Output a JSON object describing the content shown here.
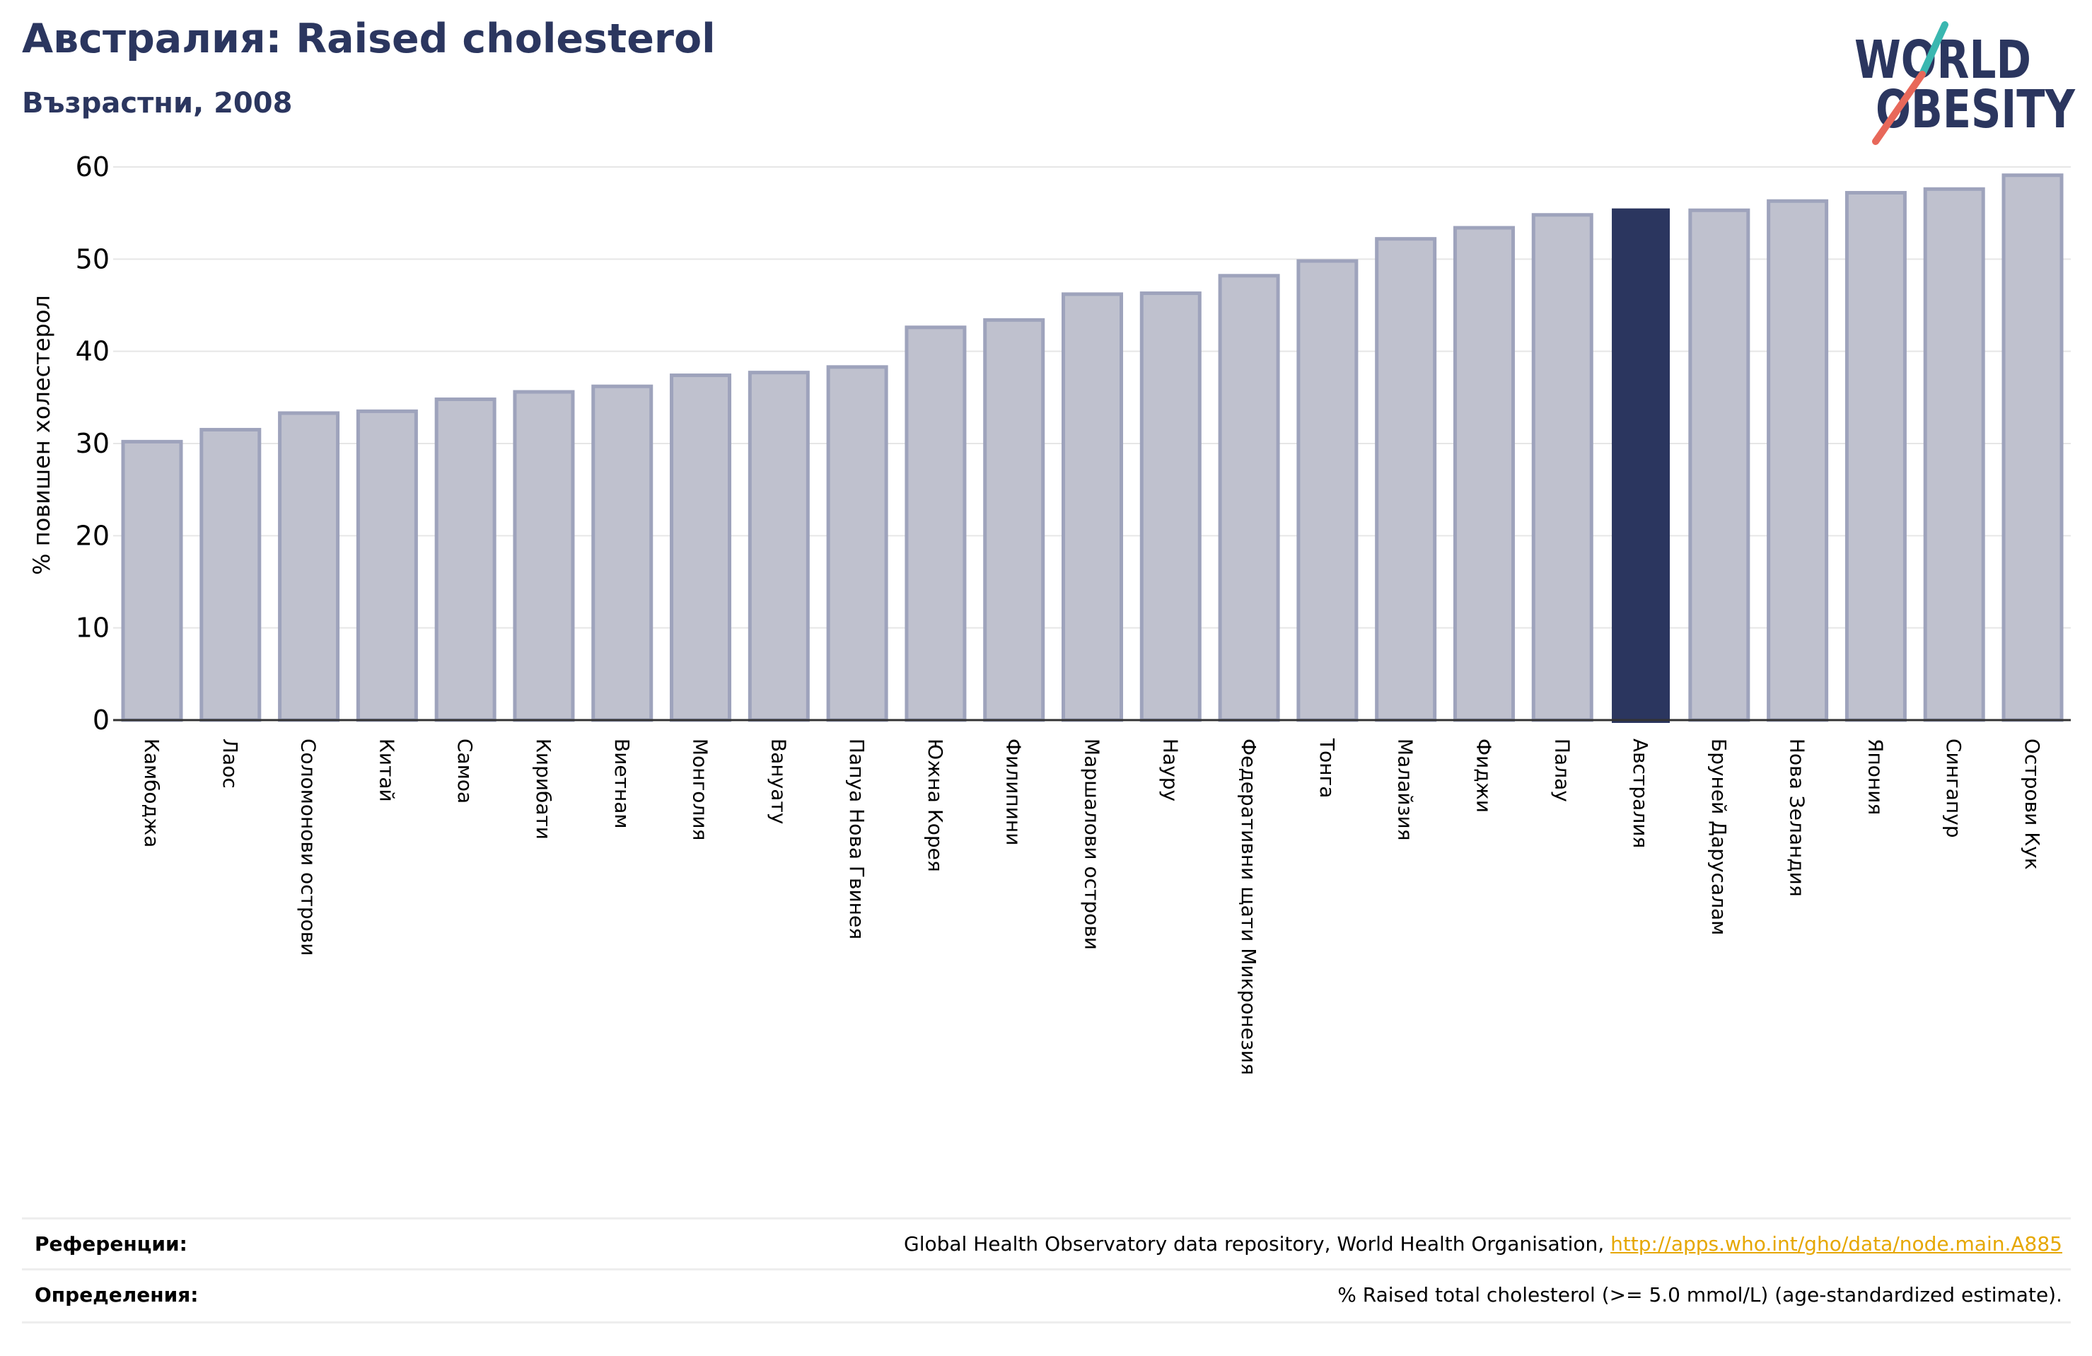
{
  "header": {
    "title": "Австралия: Raised cholesterol",
    "subtitle": "Възрастни, 2008"
  },
  "logo": {
    "line1": "WORLD",
    "line2": "OBESITY",
    "colors": {
      "text": "#2b365f",
      "slash_red": "#e8685a",
      "slash_teal": "#3ab7b0"
    }
  },
  "chart_data": {
    "type": "bar",
    "title": "",
    "xlabel": "",
    "ylabel": "% повишен холестерол",
    "ylim": [
      0,
      60
    ],
    "yticks": [
      0,
      10,
      20,
      30,
      40,
      50,
      60
    ],
    "grid": true,
    "highlight": "Австралия",
    "colors": {
      "bar": "#bfc1ce",
      "bar_edge": "#9ea3bc",
      "highlight": "#2b365f",
      "grid": "#e6e6e6"
    },
    "categories": [
      "Камбоджа",
      "Лаос",
      "Соломонови острови",
      "Китай",
      "Самоа",
      "Кирибати",
      "Виетнам",
      "Монголия",
      "Вануату",
      "Папуа Нова Гвинея",
      "Южна Корея",
      "Филипини",
      "Маршалови острови",
      "Науру",
      "Федеративни щати Микронезия",
      "Тонга",
      "Малайзия",
      "Фиджи",
      "Палау",
      "Австралия",
      "Бруней Дарусалам",
      "Нова Зеландия",
      "Япония",
      "Сингапур",
      "Острови Кук"
    ],
    "values": [
      30.2,
      31.5,
      33.3,
      33.5,
      34.8,
      35.6,
      36.2,
      37.4,
      37.7,
      38.3,
      42.6,
      43.4,
      46.2,
      46.3,
      48.2,
      49.8,
      52.2,
      53.4,
      54.8,
      55.5,
      55.3,
      56.3,
      57.2,
      57.6,
      59.1
    ]
  },
  "footer": {
    "references_label": "Референции:",
    "references_text": "Global Health Observatory data repository, World Health Organisation, ",
    "references_link": "http://apps.who.int/gho/data/node.main.A885",
    "definitions_label": "Определения:",
    "definitions_text": "% Raised total cholesterol (>= 5.0 mmol/L) (age-standardized estimate)."
  }
}
